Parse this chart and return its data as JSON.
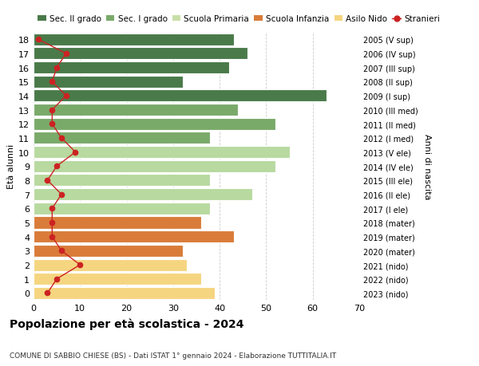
{
  "ages": [
    18,
    17,
    16,
    15,
    14,
    13,
    12,
    11,
    10,
    9,
    8,
    7,
    6,
    5,
    4,
    3,
    2,
    1,
    0
  ],
  "bar_values": [
    43,
    46,
    42,
    32,
    63,
    44,
    52,
    38,
    55,
    52,
    38,
    47,
    38,
    36,
    43,
    32,
    33,
    36,
    39
  ],
  "bar_colors": [
    "#4a7a4a",
    "#4a7a4a",
    "#4a7a4a",
    "#4a7a4a",
    "#4a7a4a",
    "#7aaa6a",
    "#7aaa6a",
    "#7aaa6a",
    "#b8d9a0",
    "#b8d9a0",
    "#b8d9a0",
    "#b8d9a0",
    "#b8d9a0",
    "#d97c3a",
    "#d97c3a",
    "#d97c3a",
    "#f5d580",
    "#f5d580",
    "#f5d580"
  ],
  "stranieri_values": [
    1,
    7,
    5,
    4,
    7,
    4,
    4,
    6,
    9,
    5,
    3,
    6,
    4,
    4,
    4,
    6,
    10,
    5,
    3
  ],
  "right_labels": [
    "2005 (V sup)",
    "2006 (IV sup)",
    "2007 (III sup)",
    "2008 (II sup)",
    "2009 (I sup)",
    "2010 (III med)",
    "2011 (II med)",
    "2012 (I med)",
    "2013 (V ele)",
    "2014 (IV ele)",
    "2015 (III ele)",
    "2016 (II ele)",
    "2017 (I ele)",
    "2018 (mater)",
    "2019 (mater)",
    "2020 (mater)",
    "2021 (nido)",
    "2022 (nido)",
    "2023 (nido)"
  ],
  "legend_labels": [
    "Sec. II grado",
    "Sec. I grado",
    "Scuola Primaria",
    "Scuola Infanzia",
    "Asilo Nido",
    "Stranieri"
  ],
  "legend_colors": [
    "#4a7a4a",
    "#7aaa6a",
    "#c8dfa8",
    "#d97c3a",
    "#f5d580",
    "#cc2222"
  ],
  "ylabel_left": "Età alunni",
  "ylabel_right": "Anni di nascita",
  "title": "Popolazione per età scolastica - 2024",
  "subtitle": "COMUNE DI SABBIO CHIESE (BS) - Dati ISTAT 1° gennaio 2024 - Elaborazione TUTTITALIA.IT",
  "xlim": [
    0,
    70
  ],
  "xticks": [
    0,
    10,
    20,
    30,
    40,
    50,
    60,
    70
  ],
  "bg_color": "#ffffff",
  "grid_color": "#cccccc",
  "bar_edge_color": "#ffffff"
}
